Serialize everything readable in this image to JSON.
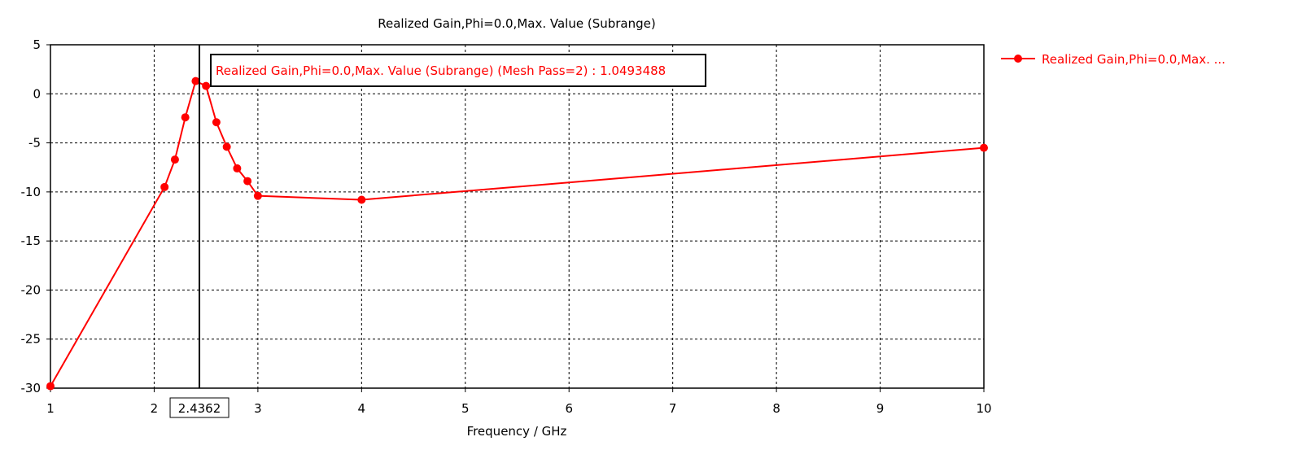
{
  "colors": {
    "series": "#ff0000",
    "grid": "#000000",
    "marker_line": "#000000"
  },
  "chart_data": {
    "type": "line",
    "title": "Realized Gain,Phi=0.0,Max. Value (Subrange)",
    "xlabel": "Frequency / GHz",
    "ylabel": "",
    "xlim": [
      1,
      10
    ],
    "ylim": [
      -30,
      5
    ],
    "xticks": [
      1,
      2,
      3,
      4,
      5,
      6,
      7,
      8,
      9,
      10
    ],
    "yticks": [
      5,
      0,
      -5,
      -10,
      -15,
      -20,
      -25,
      -30
    ],
    "grid": true,
    "legend_position": "top-right",
    "series": [
      {
        "name": "Realized Gain,Phi=0.0,Max. ...",
        "color": "#ff0000",
        "marker": "circle",
        "x": [
          1,
          2.1,
          2.2,
          2.3,
          2.4,
          2.5,
          2.6,
          2.7,
          2.8,
          2.9,
          3,
          4,
          10
        ],
        "y": [
          -29.8,
          -9.5,
          -6.7,
          -2.4,
          1.3,
          0.8,
          -2.9,
          -5.4,
          -7.6,
          -8.9,
          -10.4,
          -10.8,
          -5.5
        ]
      }
    ],
    "marker": {
      "x": 2.4362,
      "x_label": "2.4362",
      "annotation": "Realized Gain,Phi=0.0,Max. Value (Subrange) (Mesh Pass=2) : 1.0493488"
    }
  }
}
